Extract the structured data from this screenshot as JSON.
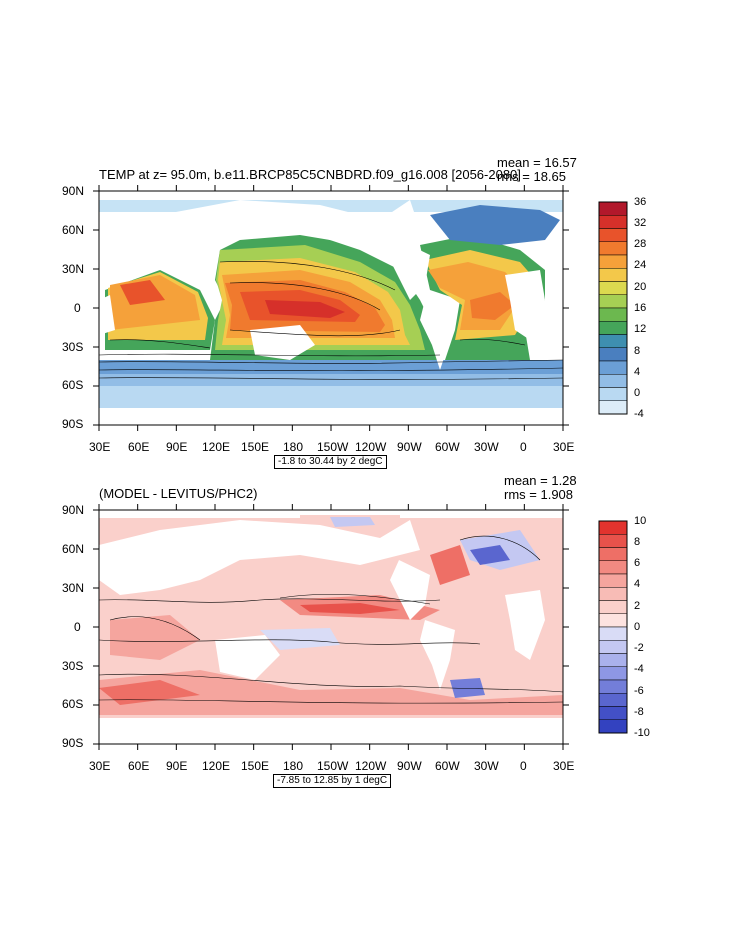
{
  "top_panel": {
    "title": "TEMP at z=  95.0m, b.e11.BRCP85C5CNBDRD.f09_g16.008 [2056-2080]",
    "mean_text": "mean = 16.57",
    "rms_text": "rms = 18.65",
    "range_text": "-1.8 to 30.44 by 2 degC",
    "colorbar_labels": [
      "36",
      "32",
      "28",
      "24",
      "20",
      "16",
      "12",
      "8",
      "4",
      "0",
      "-4"
    ],
    "colorbar_colors": [
      "#b2182b",
      "#d6302a",
      "#e8532b",
      "#f07a2e",
      "#f5a13a",
      "#f3c84a",
      "#dcd94f",
      "#a6cf54",
      "#6cb84f",
      "#45a55a",
      "#3e8fb0",
      "#4a7fbf",
      "#6b9fd6",
      "#92bde6",
      "#b9d9f2",
      "#dcecf8"
    ]
  },
  "bottom_panel": {
    "title": "(MODEL - LEVITUS/PHC2)",
    "mean_text": "mean = 1.28",
    "rms_text": "rms = 1.908",
    "range_text": "-7.85 to 12.85 by 1 degC",
    "colorbar_labels": [
      "10",
      "8",
      "6",
      "4",
      "2",
      "0",
      "-2",
      "-4",
      "-6",
      "-8",
      "-10"
    ],
    "colorbar_colors": [
      "#e2332e",
      "#e8524b",
      "#ee6f66",
      "#f28a82",
      "#f5a59e",
      "#f8bcb6",
      "#fad0cb",
      "#fde3e0",
      "#d9dcf6",
      "#c4c8f2",
      "#aab1ec",
      "#8e97e4",
      "#737ed9",
      "#5a66cf",
      "#4350c6",
      "#3342c0"
    ]
  },
  "lat_labels": [
    "90N",
    "60N",
    "30N",
    "0",
    "30S",
    "60S",
    "90S"
  ],
  "lon_labels": [
    "30E",
    "60E",
    "90E",
    "120E",
    "150E",
    "180",
    "150W",
    "120W",
    "90W",
    "60W",
    "30W",
    "0",
    "30E"
  ]
}
